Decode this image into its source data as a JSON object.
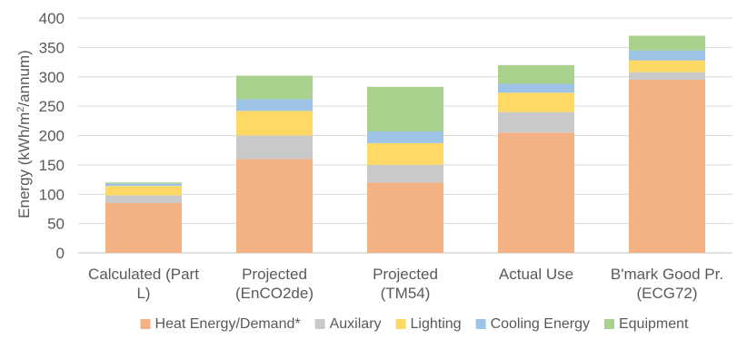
{
  "chart_data": {
    "type": "bar",
    "stacked": true,
    "ylabel_parts": [
      "Energy (kWh/m",
      "2",
      "/annum)"
    ],
    "ylim": [
      0,
      400
    ],
    "yticks": [
      0,
      50,
      100,
      150,
      200,
      250,
      300,
      350,
      400
    ],
    "categories": [
      [
        "Calculated (Part",
        "L)"
      ],
      [
        "Projected",
        "(EnCO2de)"
      ],
      [
        "Projected",
        "(TM54)"
      ],
      [
        "Actual Use"
      ],
      [
        "B'mark Good Pr.",
        "(ECG72)"
      ]
    ],
    "series": [
      {
        "name": "Heat Energy/Demand*",
        "color": "#F4B183",
        "values": [
          85,
          160,
          120,
          205,
          295
        ]
      },
      {
        "name": "Auxilary",
        "color": "#C9C9C9",
        "values": [
          13,
          40,
          30,
          35,
          13
        ]
      },
      {
        "name": "Lighting",
        "color": "#FFD966",
        "values": [
          16,
          42,
          37,
          33,
          20
        ]
      },
      {
        "name": "Cooling Energy",
        "color": "#9DC3E6",
        "values": [
          4,
          20,
          20,
          15,
          17
        ]
      },
      {
        "name": "Equipment",
        "color": "#A9D18E",
        "values": [
          2,
          40,
          76,
          32,
          25
        ]
      }
    ],
    "grid": true,
    "legend_position": "bottom"
  }
}
